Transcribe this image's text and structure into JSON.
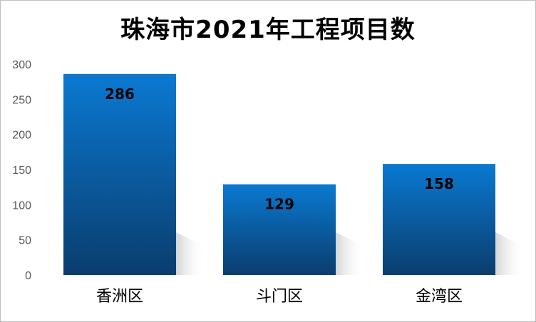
{
  "chart_data": {
    "type": "bar",
    "title": "珠海市2021年工程项目数",
    "categories": [
      "香洲区",
      "斗门区",
      "金湾区"
    ],
    "values": [
      286,
      129,
      158
    ],
    "ylim": [
      0,
      300
    ],
    "yticks": [
      0,
      50,
      100,
      150,
      200,
      250,
      300
    ],
    "grid": false,
    "legend": "none",
    "colors": {
      "bar_top": "#0a79d1",
      "bar_bottom": "#0a3d6e",
      "shadow": "#bdbdbd"
    }
  }
}
